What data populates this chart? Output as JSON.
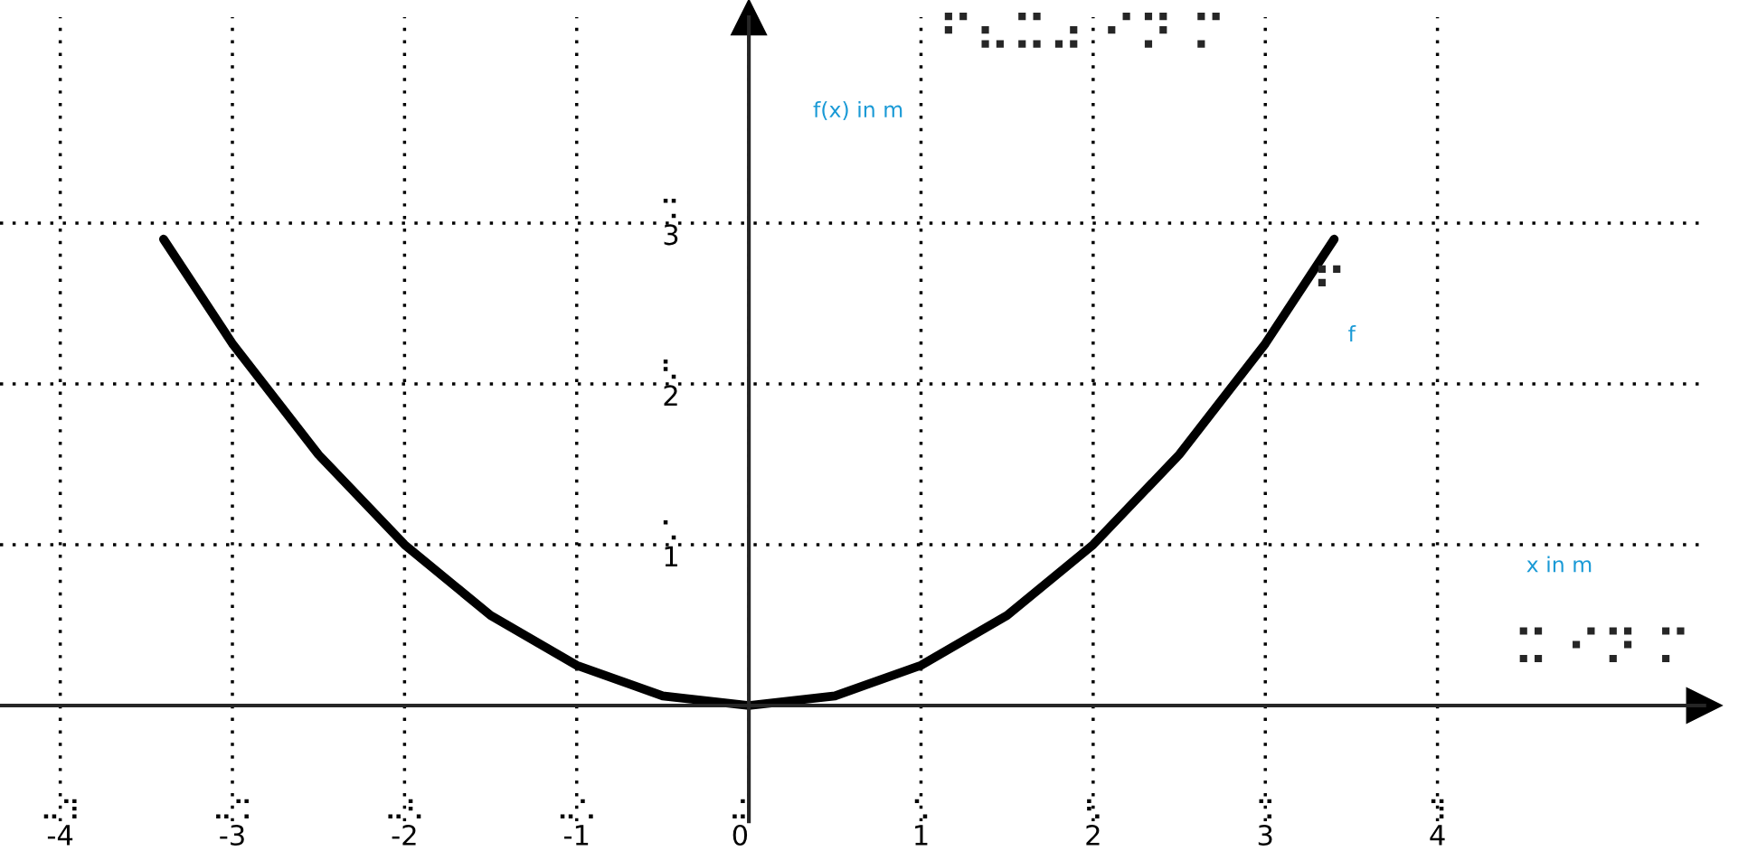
{
  "chart_data": {
    "type": "line",
    "title": "⠋⠦⠭⠴ ⠊⠝ ⠍",
    "xlabel": "x in m",
    "ylabel": "f(x) in m",
    "x": [
      -3.4,
      -3,
      -2.5,
      -2,
      -1.5,
      -1,
      -0.5,
      0,
      0.5,
      1,
      1.5,
      2,
      2.5,
      3,
      3.4
    ],
    "series": [
      {
        "name": "f",
        "color": "#000000",
        "values": [
          2.9,
          2.25,
          1.56,
          1,
          0.56,
          0.25,
          0.06,
          0,
          0.06,
          0.25,
          0.56,
          1,
          1.56,
          2.25,
          2.9
        ]
      }
    ],
    "xlim": [
      -4.35,
      5.55
    ],
    "ylim": [
      -0.72,
      4.28
    ],
    "xticks": [
      {
        "value": -4,
        "label": "⠤⠹\n-4"
      },
      {
        "value": -3,
        "label": "⠤⠩\n-3"
      },
      {
        "value": -2,
        "label": "⠤⠣\n-2"
      },
      {
        "value": -1,
        "label": "⠤⠡\n-1"
      },
      {
        "value": 0,
        "label": "⠬\n0"
      },
      {
        "value": 1,
        "label": "⠡\n1"
      },
      {
        "value": 2,
        "label": "⠣\n2"
      },
      {
        "value": 3,
        "label": "⠩\n3"
      },
      {
        "value": 4,
        "label": "⠹\n4"
      }
    ],
    "yticks": [
      {
        "value": 1,
        "label": "⠡\n1"
      },
      {
        "value": 2,
        "label": "⠣\n2"
      },
      {
        "value": 3,
        "label": "⠩\n3"
      }
    ],
    "grid": true,
    "line_style": "solid",
    "marker": "none",
    "legend": false,
    "annotations": [
      "⠭ ⠊⠝ ⠍",
      "⠋"
    ]
  }
}
